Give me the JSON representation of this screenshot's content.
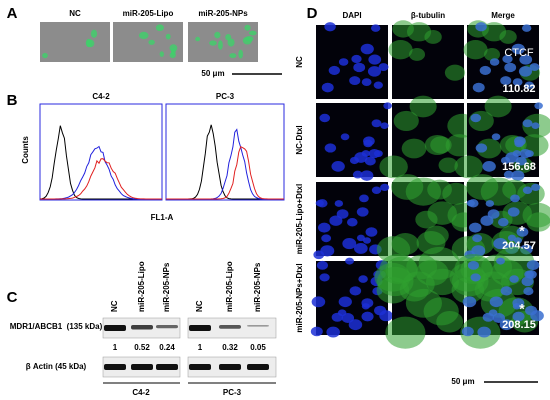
{
  "panels": {
    "a": {
      "letter": "A",
      "columns": [
        "NC",
        "miR-205-Lipo",
        "miR-205-NPs"
      ],
      "scale_bar": "50 μm"
    },
    "b": {
      "letter": "B",
      "plots": [
        "C4-2",
        "PC-3"
      ],
      "y_label": "Counts",
      "x_label": "FL1-A"
    },
    "c": {
      "letter": "C",
      "lanes": [
        "NC",
        "miR-205-Lipo",
        "miR-205-NPs",
        "NC",
        "miR-205-Lipo",
        "miR-205-NPs"
      ],
      "rows": [
        "MDR1/ABCB1  (135 kDa)",
        "β Actin (45 kDa)"
      ],
      "ratios": [
        "1",
        "0.52",
        "0.24",
        "1",
        "0.32",
        "0.05"
      ],
      "groups": [
        "C4-2",
        "PC-3"
      ]
    },
    "d": {
      "letter": "D",
      "columns": [
        "DAPI",
        "β-tubulin",
        "Merge"
      ],
      "rows": [
        "NC",
        "NC-Dtxl",
        "miR-205-Lipo+Dtxl",
        "miR-205-NPs+Dtxl"
      ],
      "ctcf_label": "CTCF",
      "ctcf": [
        "110.82",
        "156.68",
        "204.57",
        "208.15"
      ],
      "significance": [
        "*",
        "*"
      ],
      "scale_bar": "50 μm"
    }
  }
}
